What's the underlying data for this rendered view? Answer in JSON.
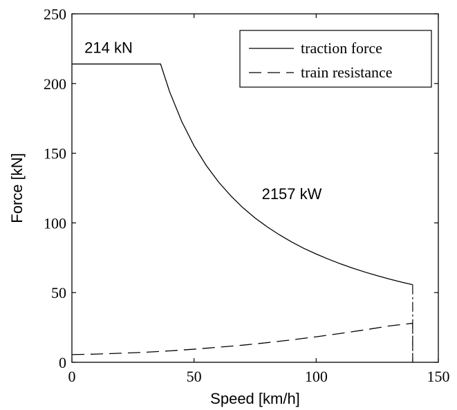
{
  "chart_data": {
    "type": "line",
    "xlabel": "Speed [km/h]",
    "ylabel": "Force [kN]",
    "xlim": [
      0,
      150
    ],
    "ylim": [
      0,
      250
    ],
    "xticks": [
      0,
      50,
      100,
      150
    ],
    "yticks": [
      0,
      50,
      100,
      150,
      200,
      250
    ],
    "grid": false,
    "legend_position": "top-right",
    "annotations": [
      {
        "text": "214 kN",
        "x": 15,
        "y": 222
      },
      {
        "text": "2157 kW",
        "x": 90,
        "y": 117
      }
    ],
    "series": [
      {
        "name": "traction force",
        "style": "solid",
        "x": [
          0,
          36.3,
          40,
          45,
          50,
          55,
          60,
          65,
          70,
          75,
          80,
          85,
          90,
          95,
          100,
          105,
          110,
          115,
          120,
          125,
          130,
          135,
          139.5,
          139.5
        ],
        "y": [
          214,
          214,
          194.1,
          172.6,
          155.3,
          141.2,
          129.4,
          119.5,
          110.9,
          103.5,
          97.1,
          91.4,
          86.3,
          81.7,
          77.7,
          74.0,
          70.6,
          67.5,
          64.7,
          62.1,
          59.7,
          57.5,
          55.7,
          0
        ]
      },
      {
        "name": "train resistance",
        "style": "dashed",
        "x": [
          0,
          10,
          20,
          30,
          40,
          50,
          60,
          70,
          80,
          90,
          100,
          110,
          120,
          130,
          139.5,
          139.5
        ],
        "y": [
          5.5,
          5.9,
          6.5,
          7.2,
          8.2,
          9.4,
          10.8,
          12.3,
          14.1,
          16.1,
          18.3,
          20.7,
          23.3,
          26.1,
          28.0,
          0
        ]
      }
    ]
  }
}
